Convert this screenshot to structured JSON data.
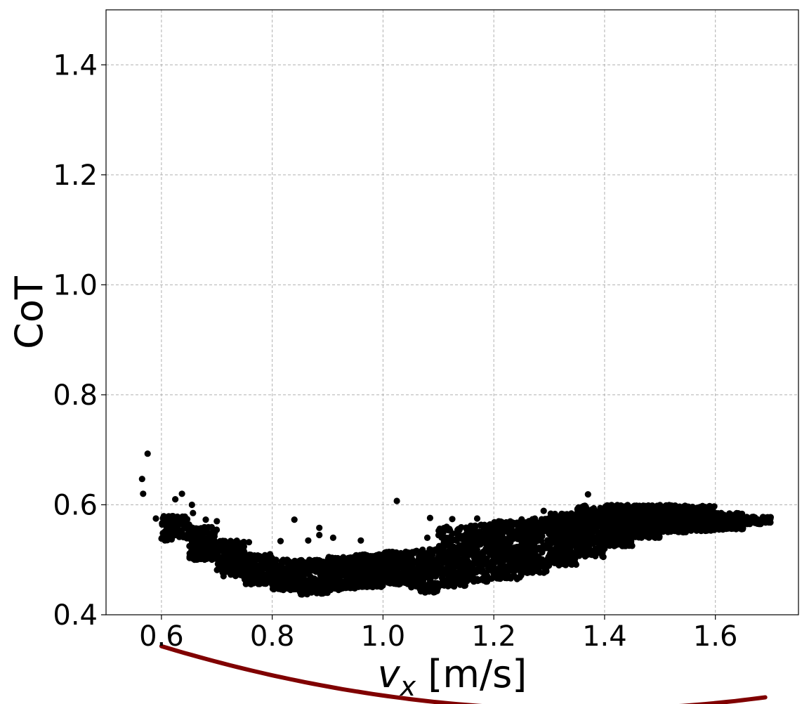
{
  "chart_data": {
    "type": "scatter",
    "xlabel_var": "v",
    "xlabel_sub": "x",
    "xlabel_unit": " [m/s]",
    "ylabel": "CoT",
    "xlim": [
      0.5,
      1.75
    ],
    "ylim": [
      0.4,
      1.5
    ],
    "xticks": [
      "0.6",
      "0.8",
      "1.0",
      "1.2",
      "1.4",
      "1.6"
    ],
    "yticks": [
      "0.4",
      "0.6",
      "0.8",
      "1.0",
      "1.2",
      "1.4"
    ],
    "grid": true,
    "point_color": "#000000",
    "fit_color": "#800000",
    "fit": {
      "type": "quadratic",
      "x_range": [
        0.6,
        1.69
      ],
      "coefficients": [
        0.2013,
        -0.5463,
        0.5982
      ]
    },
    "point_bands": [
      {
        "x": [
          0.6,
          0.65
        ],
        "y": [
          0.535,
          0.58
        ],
        "n": 120
      },
      {
        "x": [
          0.65,
          0.7
        ],
        "y": [
          0.5,
          0.56
        ],
        "n": 150
      },
      {
        "x": [
          0.7,
          0.75
        ],
        "y": [
          0.47,
          0.535
        ],
        "n": 160
      },
      {
        "x": [
          0.75,
          0.8
        ],
        "y": [
          0.455,
          0.51
        ],
        "n": 160
      },
      {
        "x": [
          0.8,
          0.85
        ],
        "y": [
          0.445,
          0.5
        ],
        "n": 170
      },
      {
        "x": [
          0.85,
          0.9
        ],
        "y": [
          0.437,
          0.5
        ],
        "n": 190
      },
      {
        "x": [
          0.9,
          0.95
        ],
        "y": [
          0.445,
          0.505
        ],
        "n": 200
      },
      {
        "x": [
          0.95,
          1.0
        ],
        "y": [
          0.45,
          0.51
        ],
        "n": 200
      },
      {
        "x": [
          1.0,
          1.05
        ],
        "y": [
          0.455,
          0.515
        ],
        "n": 200
      },
      {
        "x": [
          1.05,
          1.1
        ],
        "y": [
          0.44,
          0.52
        ],
        "n": 200
      },
      {
        "x": [
          1.1,
          1.15
        ],
        "y": [
          0.45,
          0.56
        ],
        "n": 220
      },
      {
        "x": [
          1.15,
          1.2
        ],
        "y": [
          0.46,
          0.565
        ],
        "n": 240
      },
      {
        "x": [
          1.2,
          1.25
        ],
        "y": [
          0.465,
          0.57
        ],
        "n": 240
      },
      {
        "x": [
          1.25,
          1.3
        ],
        "y": [
          0.475,
          0.575
        ],
        "n": 240
      },
      {
        "x": [
          1.3,
          1.35
        ],
        "y": [
          0.49,
          0.585
        ],
        "n": 240
      },
      {
        "x": [
          1.35,
          1.4
        ],
        "y": [
          0.505,
          0.6
        ],
        "n": 250
      },
      {
        "x": [
          1.4,
          1.45
        ],
        "y": [
          0.525,
          0.6
        ],
        "n": 260
      },
      {
        "x": [
          1.45,
          1.5
        ],
        "y": [
          0.54,
          0.6
        ],
        "n": 260
      },
      {
        "x": [
          1.5,
          1.55
        ],
        "y": [
          0.55,
          0.6
        ],
        "n": 240
      },
      {
        "x": [
          1.55,
          1.6
        ],
        "y": [
          0.552,
          0.598
        ],
        "n": 220
      },
      {
        "x": [
          1.6,
          1.65
        ],
        "y": [
          0.555,
          0.585
        ],
        "n": 160
      },
      {
        "x": [
          1.65,
          1.7
        ],
        "y": [
          0.565,
          0.578
        ],
        "n": 80
      }
    ],
    "outliers": [
      {
        "x": 0.565,
        "y": 0.647
      },
      {
        "x": 0.567,
        "y": 0.62
      },
      {
        "x": 0.575,
        "y": 0.693
      },
      {
        "x": 0.59,
        "y": 0.575
      },
      {
        "x": 0.625,
        "y": 0.61
      },
      {
        "x": 0.637,
        "y": 0.62
      },
      {
        "x": 0.655,
        "y": 0.6
      },
      {
        "x": 0.657,
        "y": 0.585
      },
      {
        "x": 0.68,
        "y": 0.573
      },
      {
        "x": 0.7,
        "y": 0.57
      },
      {
        "x": 0.758,
        "y": 0.532
      },
      {
        "x": 0.815,
        "y": 0.534
      },
      {
        "x": 0.84,
        "y": 0.573
      },
      {
        "x": 0.865,
        "y": 0.535
      },
      {
        "x": 0.885,
        "y": 0.558
      },
      {
        "x": 0.885,
        "y": 0.545
      },
      {
        "x": 0.91,
        "y": 0.54
      },
      {
        "x": 0.96,
        "y": 0.535
      },
      {
        "x": 1.025,
        "y": 0.607
      },
      {
        "x": 1.085,
        "y": 0.576
      },
      {
        "x": 1.08,
        "y": 0.54
      },
      {
        "x": 1.125,
        "y": 0.574
      },
      {
        "x": 1.17,
        "y": 0.575
      },
      {
        "x": 1.29,
        "y": 0.589
      },
      {
        "x": 1.37,
        "y": 0.619
      },
      {
        "x": 1.69,
        "y": 0.574
      }
    ]
  }
}
